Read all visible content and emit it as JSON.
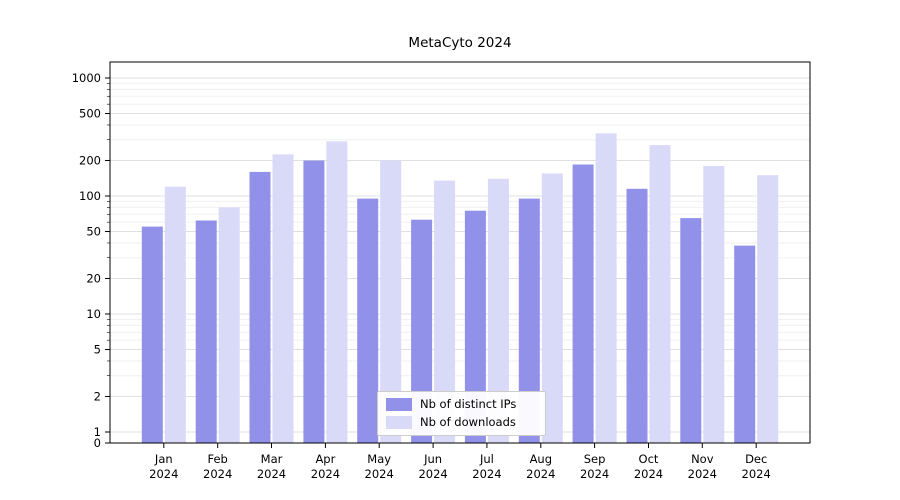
{
  "chart_data": {
    "type": "bar",
    "title": "MetaCyto 2024",
    "scale": "symlog",
    "grid": true,
    "legend_position": "lower center",
    "xlabel": "",
    "ylabel": "",
    "ylim": [
      0,
      1100
    ],
    "yticks": [
      0,
      1,
      2,
      5,
      10,
      20,
      50,
      100,
      200,
      500,
      1000
    ],
    "categories": [
      "Jan 2024",
      "Feb 2024",
      "Mar 2024",
      "Apr 2024",
      "May 2024",
      "Jun 2024",
      "Jul 2024",
      "Aug 2024",
      "Sep 2024",
      "Oct 2024",
      "Nov 2024",
      "Dec 2024"
    ],
    "series": [
      {
        "name": "Nb of distinct IPs",
        "color": "#9191ea",
        "values": [
          55,
          62,
          160,
          200,
          95,
          63,
          75,
          95,
          185,
          115,
          65,
          38
        ]
      },
      {
        "name": "Nb of downloads",
        "color": "#d9d9f8",
        "values": [
          120,
          80,
          225,
          290,
          200,
          135,
          140,
          155,
          340,
          270,
          180,
          150
        ]
      }
    ],
    "colors": {
      "major_grid": "#e0e0e0",
      "minor_grid": "#f0f0f0",
      "axis": "#000000"
    }
  }
}
